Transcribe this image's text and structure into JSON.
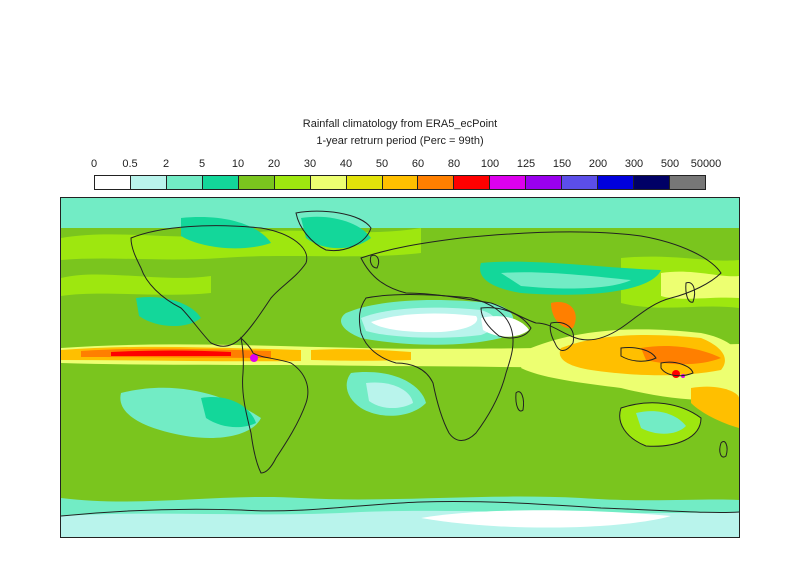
{
  "title": "Rainfall climatology from ERA5_ecPoint",
  "subtitle": "1-year retrurn period (Perc = 99th)",
  "legend": {
    "tick_labels": [
      "0",
      "0.5",
      "2",
      "5",
      "10",
      "20",
      "30",
      "40",
      "50",
      "60",
      "80",
      "100",
      "125",
      "150",
      "200",
      "300",
      "500",
      "50000"
    ],
    "colors": [
      "#ffffff",
      "#b9f4ec",
      "#72ecc5",
      "#13d79a",
      "#7ac51e",
      "#9ee70f",
      "#edff71",
      "#e2e20a",
      "#ffbf00",
      "#ff7f00",
      "#ff0000",
      "#dd00ee",
      "#9a00ee",
      "#5b4ee9",
      "#0000dd",
      "#000066",
      "#777777"
    ]
  },
  "map": {
    "projection": "global lat-lon",
    "variable": "Rainfall",
    "colors": {
      "background": "#7ac51e",
      "coast": "#222222"
    }
  }
}
